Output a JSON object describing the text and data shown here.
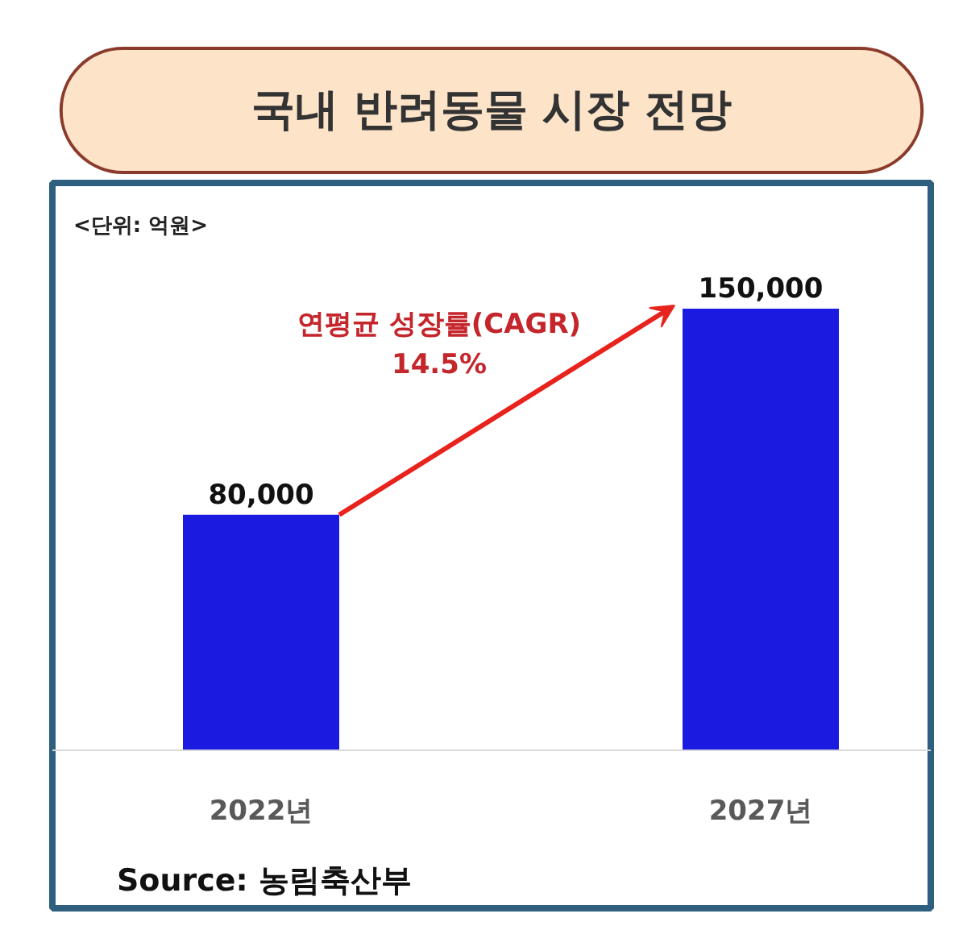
{
  "chart_data": {
    "type": "bar",
    "title": "국내 반려동물 시장 전망",
    "categories": [
      "2022년",
      "2027년"
    ],
    "values": [
      80000,
      150000
    ],
    "color": "#1a1ae0",
    "value_labels": [
      "80,000",
      "150,000"
    ],
    "annotations": [
      "<단위: 억원>",
      "연평균 성장률(CAGR)",
      "14.5%",
      "Source: 농림축산부"
    ]
  }
}
